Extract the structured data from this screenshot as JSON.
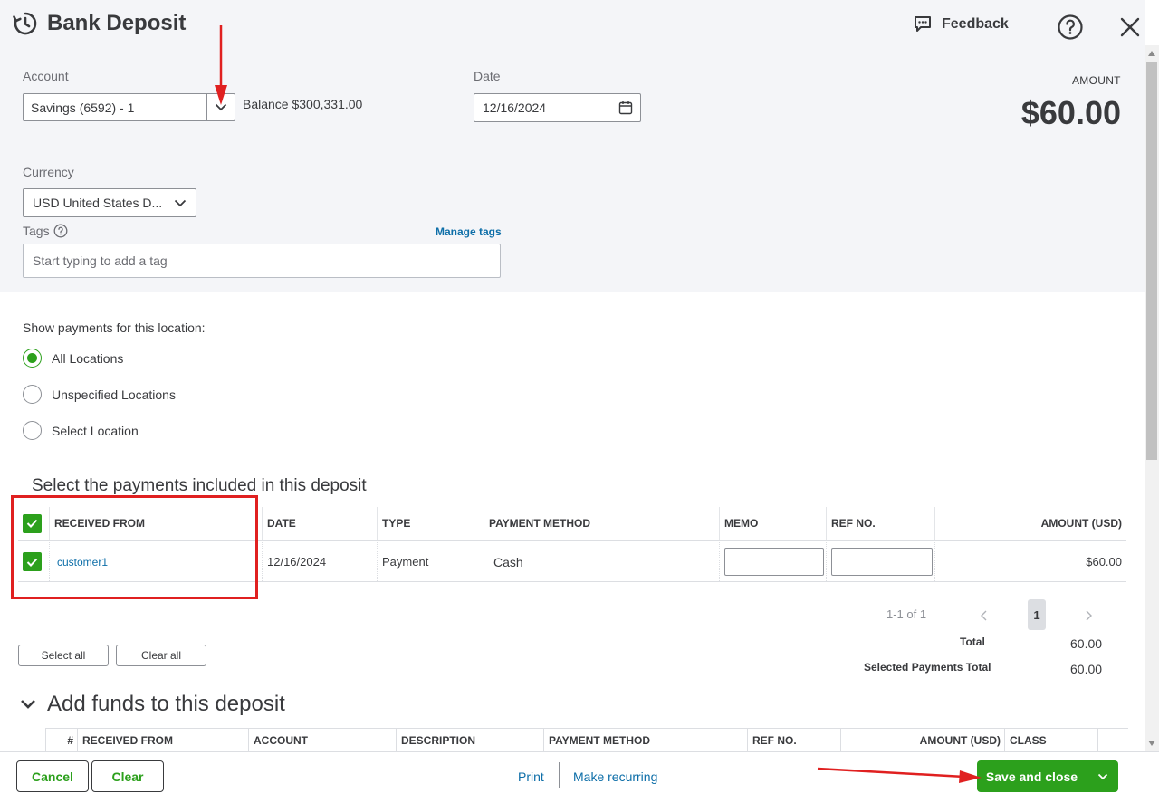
{
  "header": {
    "title": "Bank Deposit",
    "feedback_label": "Feedback"
  },
  "account": {
    "label": "Account",
    "value": "Savings (6592) - 1",
    "balance": "Balance $300,331.00"
  },
  "date": {
    "label": "Date",
    "value": "12/16/2024"
  },
  "amount": {
    "label": "AMOUNT",
    "value": "$60.00"
  },
  "currency": {
    "label": "Currency",
    "value": "USD United States D..."
  },
  "tags": {
    "label": "Tags",
    "manage_label": "Manage tags",
    "placeholder": "Start typing to add a tag"
  },
  "location": {
    "label": "Show payments for this location:",
    "options": [
      "All Locations",
      "Unspecified Locations",
      "Select Location"
    ],
    "selected": "All Locations"
  },
  "payments": {
    "title": "Select the payments included in this deposit",
    "columns": [
      "RECEIVED FROM",
      "DATE",
      "TYPE",
      "PAYMENT METHOD",
      "MEMO",
      "REF NO.",
      "AMOUNT (USD)"
    ],
    "rows": [
      {
        "received_from": "customer1",
        "date": "12/16/2024",
        "type": "Payment",
        "payment_method": "Cash",
        "memo": "",
        "ref_no": "",
        "amount": "$60.00",
        "checked": true
      }
    ],
    "pagination": "1-1 of 1",
    "current_page": "1",
    "select_all_label": "Select all",
    "clear_all_label": "Clear all",
    "total_label": "Total",
    "total_value": "60.00",
    "selected_total_label": "Selected Payments Total",
    "selected_total_value": "60.00"
  },
  "funds": {
    "title": "Add funds to this deposit",
    "columns": [
      "#",
      "RECEIVED FROM",
      "ACCOUNT",
      "DESCRIPTION",
      "PAYMENT METHOD",
      "REF NO.",
      "AMOUNT (USD)",
      "CLASS"
    ]
  },
  "footer": {
    "cancel_label": "Cancel",
    "clear_label": "Clear",
    "print_label": "Print",
    "recurring_label": "Make recurring",
    "save_label": "Save and close"
  },
  "colors": {
    "accent_green": "#2ca01c",
    "link_blue": "#0d6ea8",
    "annotation_red": "#e02020"
  }
}
